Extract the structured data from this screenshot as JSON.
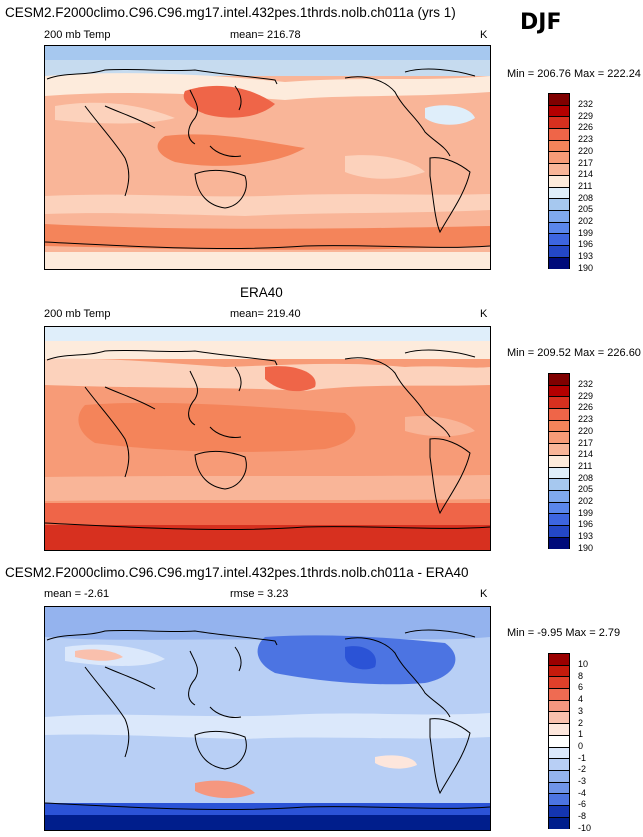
{
  "season": "DJF",
  "colors": {
    "warm": [
      "#7f0000",
      "#b30000",
      "#d7301f",
      "#ef6548",
      "#f4845a",
      "#f79b77",
      "#f9b598",
      "#fcd2bc",
      "#fdebdc"
    ],
    "cool": [
      "#dfeefa",
      "#c6dbef",
      "#a6c8ef",
      "#7fa8ee",
      "#5a86ec",
      "#3d65e0",
      "#2447c6",
      "#12289a",
      "#000a7a"
    ],
    "diff": [
      "#9a0000",
      "#c51b0c",
      "#e0402a",
      "#ef6b52",
      "#f5977f",
      "#f9c0ad",
      "#fde6dc",
      "#ffffff",
      "#dbe8fb",
      "#b8cff5",
      "#94b3ee",
      "#6f94e9",
      "#4c74e2",
      "#2b53d6",
      "#1435b0",
      "#001e8c"
    ]
  },
  "chart_data": [
    {
      "type": "heatmap",
      "title": "CESM2.F2000climo.C96.C96.mg17.intel.432pes.1thrds.nolb.ch011a (yrs 1)",
      "left_label": "200 mb Temp",
      "mean_text": "mean= 216.78",
      "units": "K",
      "minmax_text": "Min = 206.76 Max = 222.24",
      "min": 206.76,
      "max": 222.24,
      "colorbar_levels": [
        "232",
        "229",
        "226",
        "223",
        "220",
        "217",
        "214",
        "211",
        "208",
        "205",
        "202",
        "199",
        "196",
        "193",
        "190"
      ]
    },
    {
      "type": "heatmap",
      "title": "ERA40",
      "left_label": "200 mb Temp",
      "mean_text": "mean= 219.40",
      "units": "K",
      "minmax_text": "Min = 209.52 Max = 226.60",
      "min": 209.52,
      "max": 226.6,
      "colorbar_levels": [
        "232",
        "229",
        "226",
        "223",
        "220",
        "217",
        "214",
        "211",
        "208",
        "205",
        "202",
        "199",
        "196",
        "193",
        "190"
      ]
    },
    {
      "type": "heatmap",
      "title": "CESM2.F2000climo.C96.C96.mg17.intel.432pes.1thrds.nolb.ch011a - ERA40",
      "left_label": "mean =  -2.61",
      "mean_text": "rmse =   3.23",
      "units": "K",
      "minmax_text": "Min =  -9.95 Max =   2.79",
      "min": -9.95,
      "max": 2.79,
      "colorbar_levels": [
        "10",
        "8",
        "6",
        "4",
        "3",
        "2",
        "1",
        "0",
        "-1",
        "-2",
        "-3",
        "-4",
        "-6",
        "-8",
        "-10"
      ]
    }
  ]
}
